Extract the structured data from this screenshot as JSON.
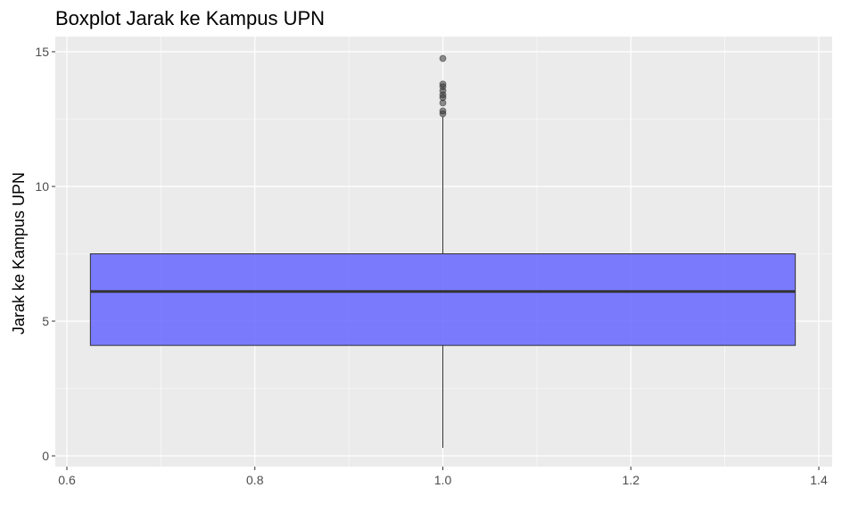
{
  "chart_data": {
    "type": "boxplot",
    "title": "Boxplot Jarak ke Kampus UPN",
    "xlabel": "",
    "ylabel": "Jarak ke Kampus UPN",
    "xlim": [
      0.6,
      1.4
    ],
    "ylim": [
      0,
      15
    ],
    "x_ticks": [
      {
        "value": 0.6,
        "label": "0.6"
      },
      {
        "value": 0.8,
        "label": "0.8"
      },
      {
        "value": 1.0,
        "label": "1.0"
      },
      {
        "value": 1.2,
        "label": "1.2"
      },
      {
        "value": 1.4,
        "label": "1.4"
      }
    ],
    "y_ticks": [
      {
        "value": 0,
        "label": "0"
      },
      {
        "value": 5,
        "label": "5"
      },
      {
        "value": 10,
        "label": "10"
      },
      {
        "value": 15,
        "label": "15"
      }
    ],
    "grid": true,
    "legend": "none",
    "box": {
      "x": 1.0,
      "x_min": 0.625,
      "x_max": 1.375,
      "whisker_low": 0.3,
      "q1": 4.1,
      "median": 6.1,
      "q3": 7.5,
      "whisker_high": 12.6
    },
    "outliers": [
      12.7,
      12.8,
      13.1,
      13.3,
      13.4,
      13.55,
      13.7,
      13.8,
      14.75
    ],
    "colors": {
      "panel_background": "#ebebeb",
      "grid_major": "#ffffff",
      "box_fill": "#6666ff",
      "box_outline": "#333333",
      "outlier": "#333333",
      "tick_text": "#4d4d4d"
    }
  }
}
